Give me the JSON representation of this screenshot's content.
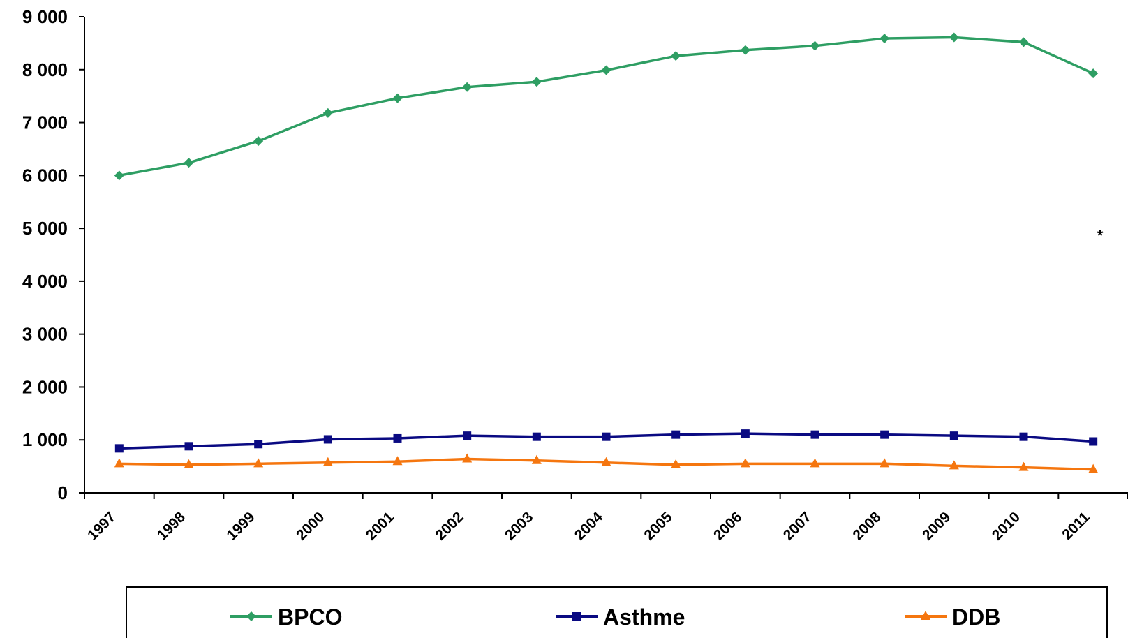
{
  "chart_data": {
    "type": "line",
    "categories": [
      "1997",
      "1998",
      "1999",
      "2000",
      "2001",
      "2002",
      "2003",
      "2004",
      "2005",
      "2006",
      "2007",
      "2008",
      "2009",
      "2010",
      "2011"
    ],
    "series": [
      {
        "name": "BPCO",
        "color": "#2e9e63",
        "marker": "diamond",
        "values": [
          6000,
          6240,
          6650,
          7180,
          7460,
          7670,
          7770,
          7990,
          8260,
          8370,
          8450,
          8590,
          8610,
          8520,
          7930
        ]
      },
      {
        "name": "Asthme",
        "color": "#0a0a82",
        "marker": "square",
        "values": [
          840,
          880,
          920,
          1010,
          1030,
          1080,
          1060,
          1060,
          1100,
          1120,
          1100,
          1100,
          1080,
          1060,
          970
        ]
      },
      {
        "name": "DDB",
        "color": "#f5760f",
        "marker": "triangle",
        "values": [
          550,
          530,
          550,
          570,
          590,
          640,
          610,
          570,
          530,
          550,
          550,
          550,
          510,
          480,
          440
        ]
      }
    ],
    "yticks": [
      "0",
      "1 000",
      "2 000",
      "3 000",
      "4 000",
      "5 000",
      "6 000",
      "7 000",
      "8 000",
      "9 000"
    ],
    "ylim": [
      0,
      9000
    ],
    "annotation": "*",
    "legend_position": "bottom",
    "grid": false
  }
}
